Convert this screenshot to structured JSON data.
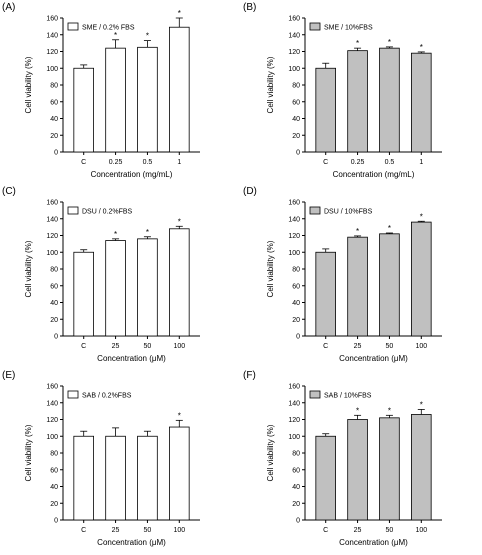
{
  "chart_data": [
    {
      "panel": "(A)",
      "type": "bar",
      "legend": "SME / 0.2% FBS",
      "bar_color": "#ffffff",
      "categories": [
        "C",
        "0.25",
        "0.5",
        "1"
      ],
      "values": [
        100,
        124,
        125,
        149
      ],
      "errors": [
        4,
        10,
        8,
        11
      ],
      "significance": [
        "",
        "*",
        "*",
        "*"
      ],
      "ylabel": "Cell viability (%)",
      "xlabel": "Concentration (mg/mL)",
      "ylim": [
        0,
        160
      ],
      "yticks": [
        "0",
        "20",
        "40",
        "60",
        "80",
        "100",
        "120",
        "140",
        "160"
      ]
    },
    {
      "panel": "(B)",
      "type": "bar",
      "legend": "SME / 10%FBS",
      "bar_color": "#c0c0c0",
      "categories": [
        "C",
        "0.25",
        "0.5",
        "1"
      ],
      "values": [
        100,
        121,
        124,
        118
      ],
      "errors": [
        6,
        3,
        1.5,
        1.5
      ],
      "significance": [
        "",
        "*",
        "*",
        "*"
      ],
      "ylabel": "Cell viability (%)",
      "xlabel": "Concentration (mg/mL)",
      "ylim": [
        0,
        160
      ],
      "yticks": [
        "0",
        "20",
        "40",
        "60",
        "80",
        "100",
        "120",
        "140",
        "160"
      ]
    },
    {
      "panel": "(C)",
      "type": "bar",
      "legend": "DSU / 0.2%FBS",
      "bar_color": "#ffffff",
      "categories": [
        "C",
        "25",
        "50",
        "100"
      ],
      "values": [
        100,
        114,
        116,
        128
      ],
      "errors": [
        3,
        2,
        2.5,
        3
      ],
      "significance": [
        "",
        "*",
        "*",
        "*"
      ],
      "ylabel": "Cell viability (%)",
      "xlabel": "Concentration (μM)",
      "ylim": [
        0,
        160
      ],
      "yticks": [
        "0",
        "20",
        "40",
        "60",
        "80",
        "100",
        "120",
        "140",
        "160"
      ]
    },
    {
      "panel": "(D)",
      "type": "bar",
      "legend": "DSU / 10%FBS",
      "bar_color": "#c0c0c0",
      "categories": [
        "C",
        "25",
        "50",
        "100"
      ],
      "values": [
        100,
        118,
        122,
        136
      ],
      "errors": [
        4,
        1.5,
        1,
        1
      ],
      "significance": [
        "",
        "*",
        "*",
        "*"
      ],
      "ylabel": "Cell viability (%)",
      "xlabel": "Concentration (μM)",
      "ylim": [
        0,
        160
      ],
      "yticks": [
        "0",
        "20",
        "40",
        "60",
        "80",
        "100",
        "120",
        "140",
        "160"
      ]
    },
    {
      "panel": "(E)",
      "type": "bar",
      "legend": "SAB / 0.2%FBS",
      "bar_color": "#ffffff",
      "categories": [
        "C",
        "25",
        "50",
        "100"
      ],
      "values": [
        100,
        100,
        100,
        111
      ],
      "errors": [
        6,
        10,
        6,
        8
      ],
      "significance": [
        "",
        "",
        "",
        "*"
      ],
      "ylabel": "Cell viability (%)",
      "xlabel": "Concentration (μM)",
      "ylim": [
        0,
        160
      ],
      "yticks": [
        "0",
        "20",
        "40",
        "60",
        "80",
        "100",
        "120",
        "140",
        "160"
      ]
    },
    {
      "panel": "(F)",
      "type": "bar",
      "legend": "SAB / 10%FBS",
      "bar_color": "#c0c0c0",
      "categories": [
        "C",
        "25",
        "50",
        "100"
      ],
      "values": [
        100,
        120,
        122,
        126
      ],
      "errors": [
        3,
        5,
        3,
        6
      ],
      "significance": [
        "",
        "*",
        "*",
        "*"
      ],
      "ylabel": "Cell viability (%)",
      "xlabel": "Concentration (μM)",
      "ylim": [
        0,
        160
      ],
      "yticks": [
        "0",
        "20",
        "40",
        "60",
        "80",
        "100",
        "120",
        "140",
        "160"
      ]
    }
  ]
}
